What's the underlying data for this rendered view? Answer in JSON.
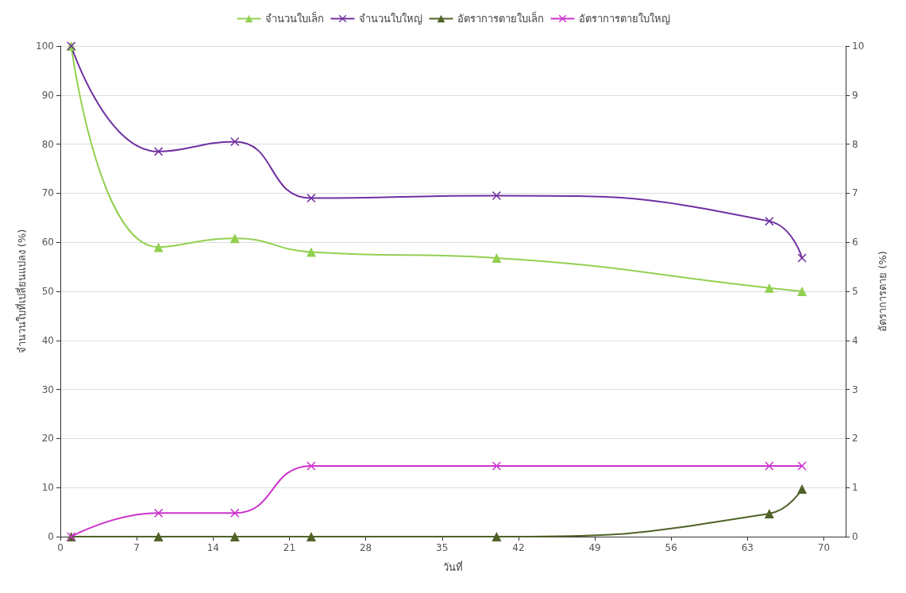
{
  "chart_data": {
    "type": "line",
    "xlabel": "วันที่",
    "ylabel": "จำนวนใบที่เปลี่ยนแปลง (%)",
    "y2label": "อัตราการตาย (%)",
    "x": [
      1,
      9,
      16,
      23,
      40,
      65,
      68
    ],
    "series": [
      {
        "name": "จำนวนใบเล็ก",
        "color": "#92d050",
        "marker": "triangle",
        "values": [
          100,
          59,
          60.8,
          58,
          56.8,
          50.7,
          50
        ]
      },
      {
        "name": "จำนวนใบใหญ่",
        "color": "#7030a0",
        "marker": "cross",
        "values": [
          100,
          78.5,
          80.5,
          69,
          69.5,
          64.3,
          56.8
        ]
      },
      {
        "name": "อัตราการตายใบเล็ก",
        "color": "#4f6228",
        "marker": "triangle",
        "axis": "y2",
        "values": [
          0,
          0,
          0,
          0,
          0,
          0.47,
          0.97
        ]
      },
      {
        "name": "อัตราการตายใบใหญ่",
        "color": "#cc33cc",
        "marker": "cross",
        "axis": "y2",
        "values": [
          0,
          0.48,
          0.48,
          1.44,
          1.44,
          1.44,
          1.44
        ]
      }
    ],
    "xlim": [
      0,
      72
    ],
    "xticks": [
      0,
      7,
      14,
      21,
      28,
      35,
      42,
      49,
      56,
      63,
      70
    ],
    "ylim": [
      0,
      100
    ],
    "yticks": [
      0,
      10,
      20,
      30,
      40,
      50,
      60,
      70,
      80,
      90,
      100
    ],
    "y2lim": [
      0,
      10
    ],
    "y2ticks": [
      0,
      1,
      2,
      3,
      4,
      5,
      6,
      7,
      8,
      9,
      10
    ],
    "grid": "y",
    "legend": "top",
    "line_style": "solid"
  }
}
